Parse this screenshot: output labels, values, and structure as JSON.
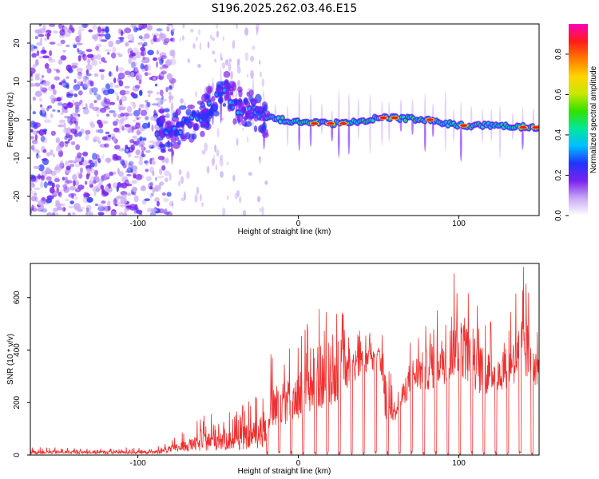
{
  "title": "S196.2025.262.03.46.E15",
  "chart_data": [
    {
      "type": "heatmap",
      "xlabel": "Height of straight line (km)",
      "ylabel": "Frequency (Hz)",
      "xlim": [
        -167,
        150
      ],
      "ylim": [
        -25,
        25
      ],
      "xticks": [
        -100,
        0,
        100
      ],
      "yticks": [
        -20,
        -10,
        0,
        10,
        20
      ],
      "colorbar": {
        "label": "Normalized spectral amplitude",
        "range": [
          0,
          0.95
        ],
        "ticks": [
          0.0,
          0.2,
          0.4,
          0.6,
          0.8
        ],
        "colors": [
          "#ffffff",
          "#c8a8f4",
          "#7a22ee",
          "#2233ff",
          "#00bfff",
          "#00e89a",
          "#33e000",
          "#c8e800",
          "#ffd400",
          "#ff7a00",
          "#ff1a1a",
          "#ff00b8"
        ]
      },
      "ridge": [
        {
          "x": -85,
          "f": -2.5
        },
        {
          "x": -70,
          "f": -1.5
        },
        {
          "x": -60,
          "f": 1
        },
        {
          "x": -52,
          "f": 5
        },
        {
          "x": -45,
          "f": 9
        },
        {
          "x": -40,
          "f": 4
        },
        {
          "x": -30,
          "f": 3
        },
        {
          "x": -20,
          "f": 0.5
        },
        {
          "x": 0,
          "f": -0.5
        },
        {
          "x": 20,
          "f": -1
        },
        {
          "x": 40,
          "f": -0.5
        },
        {
          "x": 50,
          "f": 0.5
        },
        {
          "x": 60,
          "f": 0.5
        },
        {
          "x": 80,
          "f": 0
        },
        {
          "x": 100,
          "f": -1.5
        },
        {
          "x": 120,
          "f": -1.5
        },
        {
          "x": 148,
          "f": -2
        }
      ],
      "peaks_red": [
        {
          "x": 10,
          "f": -1
        },
        {
          "x": 20,
          "f": -1
        },
        {
          "x": 28,
          "f": -1
        },
        {
          "x": 53,
          "f": 0.5
        },
        {
          "x": 60,
          "f": 0.5
        },
        {
          "x": 82,
          "f": 0
        },
        {
          "x": 103,
          "f": -1.5
        },
        {
          "x": 140,
          "f": -2
        },
        {
          "x": 148,
          "f": -2
        }
      ]
    },
    {
      "type": "line",
      "xlabel": "Height of straight line (km)",
      "ylabel": "SNR (10 * v/v)",
      "xlim": [
        -167,
        150
      ],
      "ylim": [
        0,
        730
      ],
      "xticks": [
        -100,
        0,
        100
      ],
      "yticks": [
        0,
        200,
        400,
        600
      ],
      "series": [
        {
          "name": "SNR",
          "color": "#f03030",
          "envelope": [
            {
              "x": -167,
              "base": 10,
              "peak": 30
            },
            {
              "x": -90,
              "base": 10,
              "peak": 30
            },
            {
              "x": -80,
              "base": 20,
              "peak": 60
            },
            {
              "x": -70,
              "base": 30,
              "peak": 100
            },
            {
              "x": -50,
              "base": 40,
              "peak": 190
            },
            {
              "x": -40,
              "base": 40,
              "peak": 170
            },
            {
              "x": -25,
              "base": 60,
              "peak": 240
            },
            {
              "x": -17,
              "base": 80,
              "peak": 400
            },
            {
              "x": -5,
              "base": 120,
              "peak": 420
            },
            {
              "x": 10,
              "base": 160,
              "peak": 560
            },
            {
              "x": 25,
              "base": 200,
              "peak": 580
            },
            {
              "x": 35,
              "base": 280,
              "peak": 480
            },
            {
              "x": 50,
              "base": 330,
              "peak": 480
            },
            {
              "x": 55,
              "base": 100,
              "peak": 450
            },
            {
              "x": 60,
              "base": 130,
              "peak": 200
            },
            {
              "x": 70,
              "base": 230,
              "peak": 480
            },
            {
              "x": 85,
              "base": 250,
              "peak": 560
            },
            {
              "x": 100,
              "base": 300,
              "peak": 730
            },
            {
              "x": 115,
              "base": 220,
              "peak": 560
            },
            {
              "x": 125,
              "base": 240,
              "peak": 470
            },
            {
              "x": 140,
              "base": 280,
              "peak": 730
            },
            {
              "x": 150,
              "base": 260,
              "peak": 450
            }
          ]
        }
      ]
    }
  ]
}
